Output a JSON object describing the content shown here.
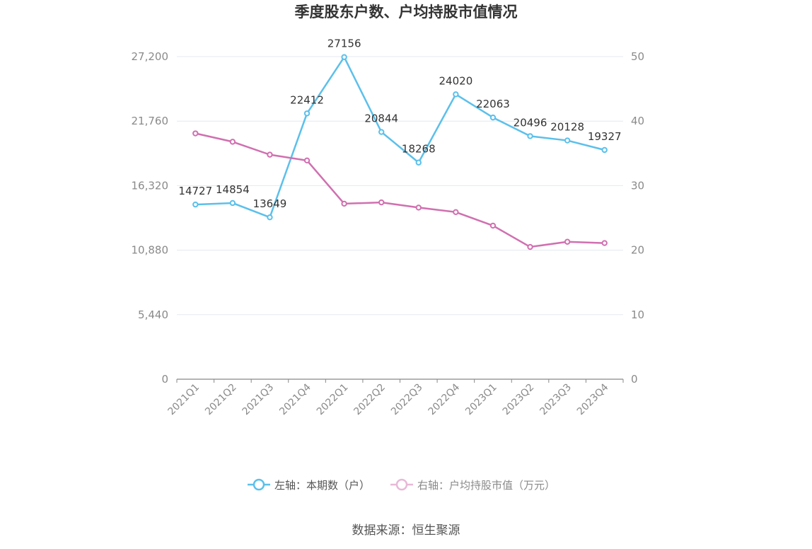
{
  "chart_data": {
    "type": "line",
    "title": "季度股东户数、户均持股市值情况",
    "categories": [
      "2021Q1",
      "2021Q2",
      "2021Q3",
      "2021Q4",
      "2022Q1",
      "2022Q2",
      "2022Q3",
      "2022Q4",
      "2023Q1",
      "2023Q2",
      "2023Q3",
      "2023Q4"
    ],
    "left_axis": {
      "ticks": [
        "0",
        "5,440",
        "10,880",
        "16,320",
        "21,760",
        "27,200"
      ],
      "ylim": [
        0,
        27200
      ]
    },
    "right_axis": {
      "ticks": [
        "0",
        "10",
        "20",
        "30",
        "40",
        "50"
      ],
      "ylim": [
        0,
        50
      ]
    },
    "series": [
      {
        "name": "左轴：本期数（户）",
        "axis": "left",
        "color": "#5bc0eb",
        "values": [
          14727,
          14854,
          13649,
          22412,
          27156,
          20844,
          18268,
          24020,
          22063,
          20496,
          20128,
          19327
        ],
        "labels": [
          "14727",
          "14854",
          "13649",
          "22412",
          "27156",
          "20844",
          "18268",
          "24020",
          "22063",
          "20496",
          "20128",
          "19327"
        ]
      },
      {
        "name": "右轴：户均持股市值（万元）",
        "axis": "right",
        "color": "#d070b0",
        "values": [
          38.1,
          36.8,
          34.8,
          33.9,
          27.2,
          27.4,
          26.6,
          25.9,
          23.8,
          20.5,
          21.3,
          21.1
        ]
      }
    ],
    "grid": true,
    "legend_position": "bottom"
  },
  "source": "数据来源：恒生聚源"
}
